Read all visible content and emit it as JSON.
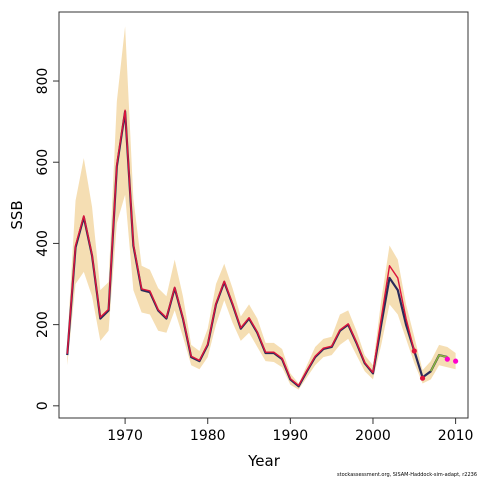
{
  "chart_data": {
    "type": "line",
    "xlabel": "Year",
    "ylabel": "SSB",
    "footer": "stockassessment.org, SISAM-Haddock-sim-adapt, r2236",
    "xlim": [
      1962,
      2011.5
    ],
    "ylim": [
      -30,
      970
    ],
    "x_ticks": [
      1970,
      1980,
      1990,
      2000,
      2010
    ],
    "y_ticks": [
      0,
      200,
      400,
      600,
      800
    ],
    "grid": false,
    "colors": {
      "band": "#f5deb3",
      "estimate_dark": "#2b2b5a",
      "estimate_red": "#dc143c",
      "short_series": "#8db83a",
      "forecast_points": "#ff00cc",
      "frame": "#333333"
    },
    "series": [
      {
        "x": [
          1963,
          1964,
          1965,
          1966,
          1967,
          1968,
          1969,
          1970,
          1971,
          1972,
          1973,
          1974,
          1975,
          1976,
          1977,
          1978,
          1979,
          1980,
          1981,
          1982,
          1983,
          1984,
          1985,
          1986,
          1987,
          1988,
          1989,
          1990,
          1991,
          1992,
          1993,
          1994,
          1995,
          1996,
          1997,
          1998,
          1999,
          2000,
          2001,
          2002,
          2003,
          2004,
          2005,
          2006,
          2007,
          2008,
          2009
        ],
        "values": [
          125,
          390,
          465,
          370,
          215,
          235,
          590,
          725,
          395,
          285,
          280,
          235,
          215,
          290,
          215,
          120,
          110,
          150,
          250,
          305,
          250,
          190,
          215,
          180,
          130,
          130,
          115,
          65,
          48,
          85,
          120,
          140,
          145,
          185,
          200,
          155,
          105,
          80,
          200,
          315,
          285,
          200,
          135,
          70,
          85,
          125,
          120
        ]
      },
      {
        "x": [
          1963,
          1964,
          1965,
          1966,
          1967,
          1968,
          1969,
          1970,
          1971,
          1972,
          1973,
          1974,
          1975,
          1976,
          1977,
          1978,
          1979,
          1980,
          1981,
          1982,
          1983,
          1984,
          1985,
          1986,
          1987,
          1988,
          1989,
          1990,
          1991,
          1992,
          1993,
          1994,
          1995,
          1996,
          1997,
          1998,
          1999,
          2000,
          2001,
          2002,
          2003,
          2004,
          2005
        ],
        "values": [
          128,
          395,
          468,
          372,
          218,
          238,
          595,
          728,
          398,
          288,
          283,
          237,
          217,
          292,
          217,
          122,
          112,
          152,
          252,
          307,
          252,
          192,
          217,
          182,
          132,
          132,
          117,
          67,
          50,
          87,
          122,
          142,
          147,
          187,
          202,
          157,
          107,
          82,
          215,
          345,
          315,
          215,
          135
        ]
      },
      {
        "x": [
          2007,
          2008,
          2009
        ],
        "values": [
          85,
          125,
          120
        ]
      },
      {
        "x": [
          2005,
          2006,
          2009,
          2010
        ],
        "values": [
          135,
          68,
          115,
          110
        ]
      }
    ],
    "band": {
      "x": [
        1963,
        1964,
        1965,
        1966,
        1967,
        1968,
        1969,
        1970,
        1971,
        1972,
        1973,
        1974,
        1975,
        1976,
        1977,
        1978,
        1979,
        1980,
        1981,
        1982,
        1983,
        1984,
        1985,
        1986,
        1987,
        1988,
        1989,
        1990,
        1991,
        1992,
        1993,
        1994,
        1995,
        1996,
        1997,
        1998,
        1999,
        2000,
        2001,
        2002,
        2003,
        2004,
        2005,
        2006,
        2007,
        2008,
        2009,
        2010
      ],
      "upper": [
        155,
        505,
        610,
        490,
        285,
        305,
        750,
        935,
        510,
        345,
        335,
        290,
        270,
        360,
        270,
        150,
        135,
        190,
        300,
        350,
        290,
        220,
        250,
        215,
        155,
        155,
        140,
        80,
        55,
        100,
        145,
        165,
        170,
        225,
        235,
        185,
        125,
        100,
        260,
        395,
        360,
        250,
        170,
        88,
        110,
        150,
        145,
        130
      ],
      "lower": [
        100,
        300,
        330,
        270,
        160,
        185,
        450,
        520,
        285,
        230,
        225,
        185,
        180,
        235,
        170,
        100,
        90,
        120,
        200,
        260,
        205,
        160,
        180,
        145,
        110,
        108,
        95,
        52,
        40,
        70,
        100,
        120,
        125,
        150,
        165,
        125,
        85,
        65,
        150,
        250,
        225,
        165,
        105,
        55,
        65,
        100,
        95,
        90
      ]
    }
  }
}
